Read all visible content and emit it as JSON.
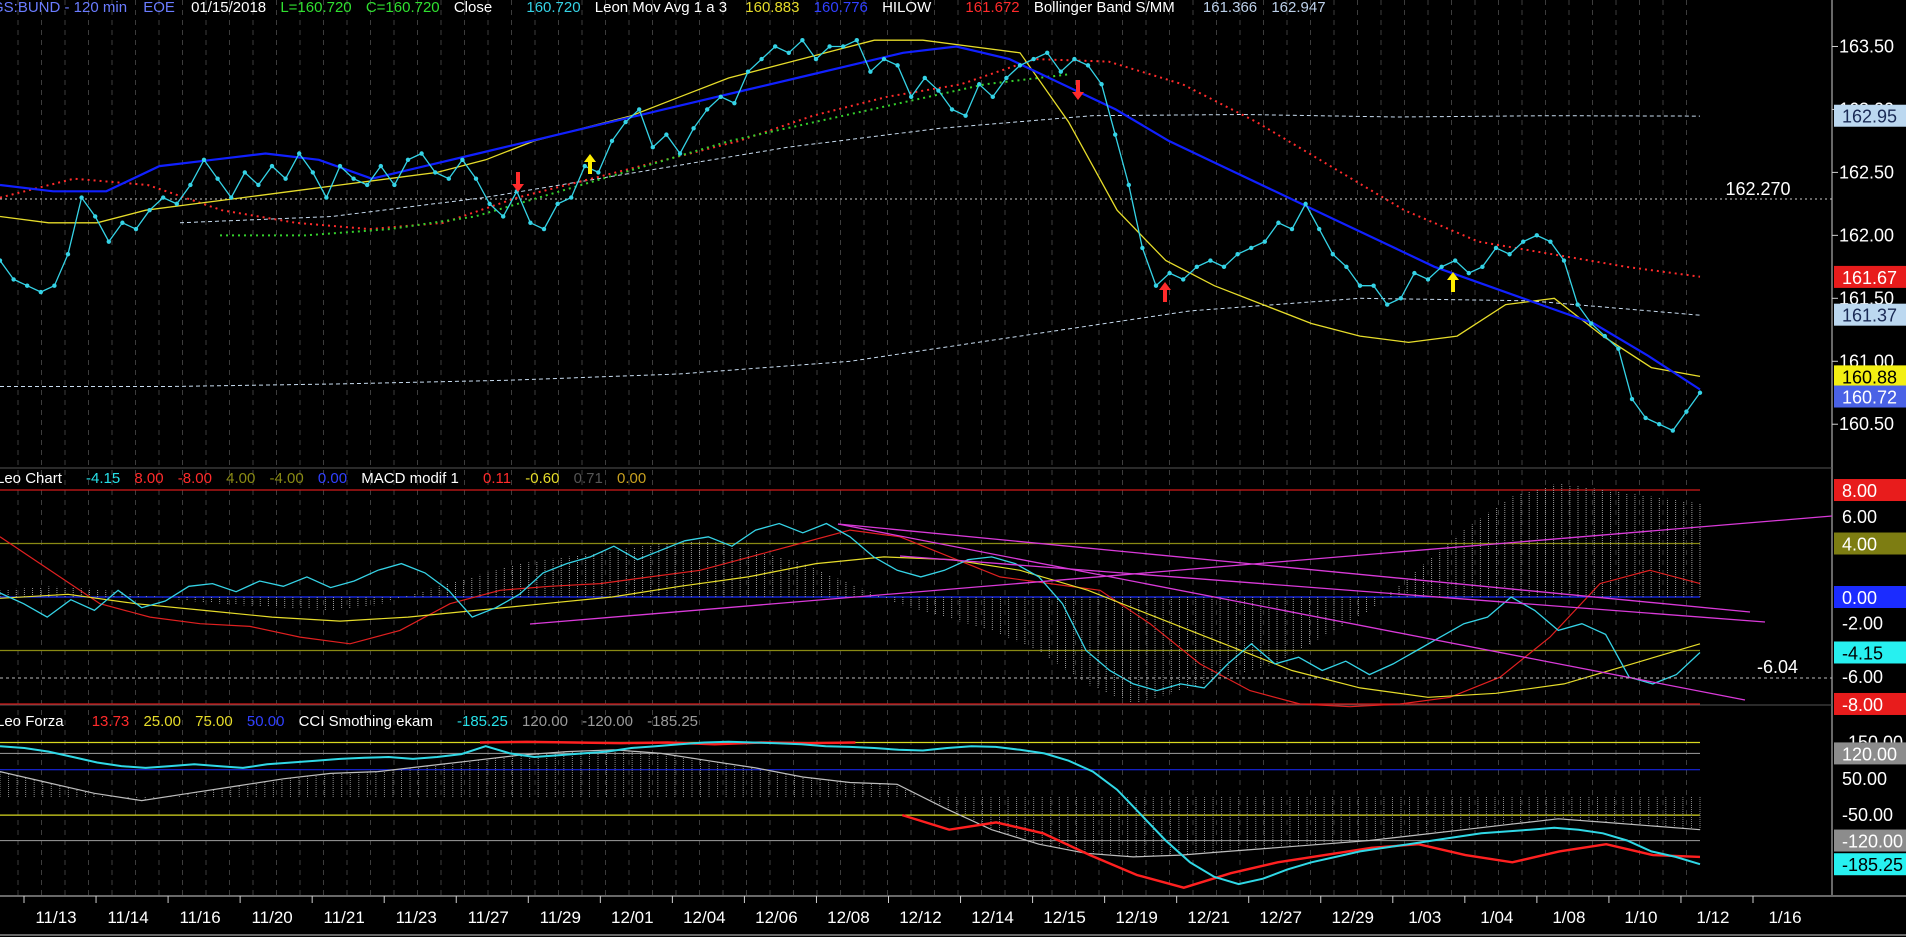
{
  "header": {
    "symbol": "GS:BUND - 120 min",
    "source": "EOE",
    "date": "01/15/2018",
    "low_label": "L=160.720",
    "close_label": "C=160.720",
    "close_word": "Close",
    "close_value": "160.720",
    "ma_name": "Leon Mov Avg 1 a 3",
    "ma_value1": "160.883",
    "ma_value2": "160.776",
    "hilow_name": "HILOW",
    "hilow_value": "161.672",
    "bb_name": "Bollinger Band S/MM",
    "bb_value1": "161.366",
    "bb_value2": "162.947"
  },
  "macd_header": {
    "name": "Leo Chart",
    "values": [
      "-4.15",
      "8.00",
      "-8.00",
      "4.00",
      "-4.00",
      "0.00"
    ],
    "macd_name": "MACD modif 1",
    "macd_values": [
      "0.11",
      "-0.60",
      "0.71",
      "0.00"
    ]
  },
  "cci_header": {
    "name": "Leo Forza",
    "values": [
      "13.73",
      "25.00",
      "75.00",
      "50.00"
    ],
    "cci_name": "CCI Smothing ekam",
    "cci_values": [
      "-185.25",
      "120.00",
      "-120.00",
      "-185.25"
    ]
  },
  "colors": {
    "price": "#35d3e6",
    "blue_ma": "#1020ff",
    "yellow_ma": "#e6dc2a",
    "hilow_red": "#ff2b2b",
    "hilow_green": "#34d02c",
    "bollinger": "#c8dcf0",
    "magenta": "#d93ad9",
    "hist": "#9a9a9a",
    "level_olive": "#8a8a14",
    "level_red": "#d21a1a"
  },
  "chart_data": [
    {
      "type": "line",
      "panel": "price",
      "ylim": [
        160.2,
        163.75
      ],
      "axis_ticks": [
        "163.50",
        "163.00",
        "162.50",
        "162.00",
        "161.50",
        "161.00",
        "160.50"
      ],
      "reference_line": "162.270",
      "tags": [
        {
          "label": "162.95",
          "value": 162.95,
          "bg": "#bcd8f0",
          "fg": "#1a2a55"
        },
        {
          "label": "161.67",
          "value": 161.67,
          "bg": "#e81c1c",
          "fg": "#ffffff"
        },
        {
          "label": "161.37",
          "value": 161.37,
          "bg": "#bcd8f0",
          "fg": "#1a2a55"
        },
        {
          "label": "160.88",
          "value": 160.88,
          "bg": "#f3ef12",
          "fg": "#000000"
        },
        {
          "label": "160.72",
          "value": 160.72,
          "bg": "#4a62e6",
          "fg": "#ffffff"
        }
      ],
      "close": [
        161.8,
        161.65,
        161.6,
        161.55,
        161.6,
        161.85,
        162.3,
        162.15,
        161.95,
        162.1,
        162.05,
        162.2,
        162.3,
        162.25,
        162.4,
        162.6,
        162.45,
        162.3,
        162.5,
        162.4,
        162.55,
        162.45,
        162.65,
        162.5,
        162.3,
        162.55,
        162.45,
        162.4,
        162.55,
        162.4,
        162.6,
        162.65,
        162.5,
        162.45,
        162.6,
        162.45,
        162.25,
        162.15,
        162.35,
        162.1,
        162.05,
        162.25,
        162.3,
        162.55,
        162.5,
        162.75,
        162.9,
        163.0,
        162.7,
        162.8,
        162.65,
        162.85,
        163.0,
        163.1,
        163.05,
        163.3,
        163.4,
        163.5,
        163.45,
        163.55,
        163.4,
        163.5,
        163.5,
        163.55,
        163.3,
        163.4,
        163.35,
        163.1,
        163.25,
        163.15,
        163.0,
        162.95,
        163.2,
        163.1,
        163.25,
        163.35,
        163.4,
        163.45,
        163.3,
        163.4,
        163.35,
        163.2,
        162.8,
        162.4,
        161.9,
        161.6,
        161.7,
        161.65,
        161.75,
        161.8,
        161.75,
        161.85,
        161.9,
        161.95,
        162.1,
        162.05,
        162.25,
        162.05,
        161.85,
        161.75,
        161.6,
        161.6,
        161.45,
        161.5,
        161.7,
        161.65,
        161.75,
        161.8,
        161.7,
        161.75,
        161.9,
        161.85,
        161.95,
        162.0,
        161.95,
        161.8,
        161.45,
        161.3,
        161.2,
        161.1,
        160.7,
        160.55,
        160.5,
        160.45,
        160.6,
        160.75
      ],
      "series": [
        {
          "name": "Close",
          "values_key": "close"
        },
        {
          "name": "Leon Mov Avg 1 a 3",
          "values": [
            162.15,
            162.1,
            162.1,
            162.2,
            162.25,
            162.3,
            162.35,
            162.4,
            162.45,
            162.5,
            162.6,
            162.75,
            162.85,
            162.95,
            163.1,
            163.25,
            163.35,
            163.45,
            163.55,
            163.55,
            163.5,
            163.45,
            162.9,
            162.2,
            161.8,
            161.6,
            161.45,
            161.3,
            161.2,
            161.15,
            161.2,
            161.45,
            161.5,
            161.2,
            160.95,
            160.88
          ]
        },
        {
          "name": "Leon Mov Avg 1 a 3",
          "values": [
            162.4,
            162.35,
            162.35,
            162.55,
            162.6,
            162.65,
            162.6,
            162.45,
            162.55,
            162.65,
            162.75,
            162.85,
            162.95,
            163.05,
            163.15,
            163.25,
            163.35,
            163.45,
            163.5,
            163.4,
            163.2,
            163.0,
            162.75,
            162.55,
            162.35,
            162.15,
            161.95,
            161.75,
            161.6,
            161.45,
            161.3,
            161.05,
            160.776
          ]
        },
        {
          "name": "HILOW",
          "values": [
            162.3,
            162.45,
            162.4,
            162.2,
            162.1,
            162.05,
            162.1,
            162.3,
            162.45,
            162.6,
            162.75,
            162.95,
            163.1,
            163.2,
            163.4,
            163.38,
            163.2,
            162.9,
            162.55,
            162.2,
            161.95,
            161.85,
            161.75,
            161.672
          ]
        },
        {
          "name": "Bollinger Band S/MM",
          "values": [
            162.1,
            162.15,
            162.3,
            162.5,
            162.7,
            162.85,
            162.95,
            162.96,
            162.94,
            162.95,
            162.947
          ]
        },
        {
          "name": "Bollinger Band S/MM",
          "values": [
            160.8,
            160.8,
            160.82,
            160.85,
            160.9,
            161.0,
            161.2,
            161.4,
            161.5,
            161.48,
            161.366
          ]
        }
      ],
      "arrows": [
        {
          "dir": "down",
          "color": "#ff2b2b"
        },
        {
          "dir": "up",
          "color": "#ffee00"
        },
        {
          "dir": "down",
          "color": "#ff2b2b"
        },
        {
          "dir": "up",
          "color": "#ff2b2b"
        },
        {
          "dir": "up",
          "color": "#ffee00"
        }
      ]
    },
    {
      "type": "line",
      "panel": "macd",
      "ylim": [
        -8.6,
        8.6
      ],
      "axis_ticks": [
        "6.00",
        "-2.00",
        "-6.00"
      ],
      "level_tags": [
        {
          "label": "8.00",
          "value": 8,
          "bg": "#e81c1c",
          "fg": "#ffffff"
        },
        {
          "label": "4.00",
          "value": 4,
          "bg": "#7d7d12",
          "fg": "#ffffff"
        },
        {
          "label": "0.00",
          "value": 0,
          "bg": "#1b2cff",
          "fg": "#ffffff"
        },
        {
          "label": "-4.15",
          "value": -4.15,
          "bg": "#27f0f0",
          "fg": "#000000"
        },
        {
          "label": "-8.00",
          "value": -8,
          "bg": "#e81c1c",
          "fg": "#ffffff"
        }
      ],
      "reference_line": "-6.04",
      "cyan": [
        0.3,
        -0.5,
        -1.5,
        -0.2,
        -1.0,
        0.5,
        -0.8,
        -0.3,
        0.8,
        1.0,
        0.4,
        1.2,
        0.8,
        1.5,
        0.7,
        1.2,
        2.0,
        2.5,
        1.8,
        0.5,
        -1.5,
        -0.8,
        0.2,
        1.8,
        2.5,
        3.0,
        3.8,
        2.8,
        3.5,
        4.2,
        4.5,
        3.8,
        5.0,
        5.5,
        4.8,
        5.5,
        4.5,
        3.0,
        2.0,
        1.5,
        2.0,
        2.8,
        3.0,
        2.5,
        1.5,
        -0.5,
        -4.0,
        -5.5,
        -6.5,
        -7.0,
        -6.5,
        -6.8,
        -5.0,
        -3.5,
        -5.0,
        -4.5,
        -5.5,
        -4.8,
        -5.8,
        -5.0,
        -4.0,
        -3.0,
        -2.0,
        -1.5,
        0.0,
        -1.0,
        -2.5,
        -2.0,
        -2.8,
        -6.0,
        -6.5,
        -5.8,
        -4.15
      ],
      "series": [
        {
          "name": "MACD modif 1",
          "values": [
            4.5,
            2.0,
            -0.5,
            -1.5,
            -2.0,
            -2.2,
            -3.0,
            -3.5,
            -2.5,
            -0.5,
            0.5,
            0.8,
            1.0,
            1.5,
            2.0,
            3.0,
            4.0,
            5.0,
            4.5,
            3.0,
            1.5,
            1.0,
            0.5,
            -2.0,
            -5.0,
            -7.0,
            -8.0,
            -8.2,
            -8.0,
            -7.5,
            -6.0,
            -3.0,
            1.0,
            2.0,
            1.0
          ]
        },
        {
          "name": "MACD modif 1",
          "values": [
            -0.1,
            0.2,
            -0.5,
            -1.0,
            -1.5,
            -1.8,
            -1.5,
            -1.0,
            -0.5,
            0.0,
            0.8,
            1.5,
            2.5,
            3.0,
            2.8,
            2.0,
            0.5,
            -1.5,
            -3.5,
            -5.5,
            -6.8,
            -7.5,
            -7.2,
            -6.5,
            -5.0,
            -3.5
          ]
        },
        {
          "name": "histogram",
          "values": [
            0.5,
            0.8,
            0.6,
            0.2,
            -0.3,
            -0.6,
            -0.8,
            -1.0,
            -0.6,
            0.5,
            1.5,
            2.5,
            3.0,
            3.5,
            4.0,
            4.2,
            3.5,
            2.5,
            1.0,
            -0.5,
            -1.5,
            -2.5,
            -4.0,
            -6.5,
            -8.0,
            -7.0,
            -6.0,
            -5.0,
            -3.0,
            -1.0,
            2.0,
            5.0,
            7.5,
            8.5,
            8.0,
            7.5,
            7.0
          ]
        }
      ],
      "trendlines": 4
    },
    {
      "type": "line",
      "panel": "cci",
      "ylim": [
        -270,
        190
      ],
      "axis_ticks": [
        "-150.00",
        "50.00",
        "-50.00"
      ],
      "level_tags": [
        {
          "label": "120.00",
          "value": 120,
          "bg": "#8c8c8c",
          "fg": "#ffffff"
        },
        {
          "label": "-120.00",
          "value": -120,
          "bg": "#8c8c8c",
          "fg": "#ffffff"
        },
        {
          "label": "-185.25",
          "value": -185.25,
          "bg": "#27f0f0",
          "fg": "#000000"
        }
      ],
      "cyan": [
        140,
        135,
        125,
        110,
        95,
        85,
        80,
        85,
        90,
        85,
        80,
        90,
        95,
        100,
        105,
        108,
        110,
        105,
        110,
        118,
        140,
        120,
        110,
        115,
        120,
        125,
        135,
        140,
        145,
        150,
        152,
        150,
        148,
        145,
        140,
        138,
        135,
        130,
        128,
        135,
        140,
        138,
        130,
        120,
        100,
        70,
        20,
        -50,
        -120,
        -180,
        -220,
        -240,
        -225,
        -200,
        -180,
        -165,
        -150,
        -140,
        -130,
        -120,
        -110,
        -100,
        -95,
        -90,
        -85,
        -90,
        -100,
        -120,
        -150,
        -165,
        -185.25
      ],
      "series": [
        {
          "name": "CCI Smothing ekam",
          "values": [
            70,
            40,
            10,
            -10,
            10,
            30,
            50,
            65,
            70,
            85,
            100,
            115,
            125,
            130,
            120,
            100,
            80,
            55,
            40,
            35,
            -30,
            -90,
            -130,
            -155,
            -165,
            -160,
            -150,
            -140,
            -130,
            -120,
            -105,
            -90,
            -75,
            -60,
            -70,
            -80,
            -90
          ]
        },
        {
          "name": "red",
          "values": [
            150,
            152,
            150,
            148,
            150,
            145,
            150,
            148,
            150,
            -50,
            -90,
            -70,
            -100,
            -160,
            -215,
            -250,
            -210,
            -180,
            -160,
            -140,
            -130,
            -160,
            -180,
            -150,
            -130,
            -160,
            -165
          ]
        }
      ]
    }
  ],
  "x_axis": [
    "11/13",
    "11/14",
    "11/16",
    "11/20",
    "11/21",
    "11/23",
    "11/27",
    "11/29",
    "12/01",
    "12/04",
    "12/06",
    "12/08",
    "12/12",
    "12/14",
    "12/15",
    "12/19",
    "12/21",
    "12/27",
    "12/29",
    "1/03",
    "1/04",
    "1/08",
    "1/10",
    "1/12",
    "1/16"
  ]
}
